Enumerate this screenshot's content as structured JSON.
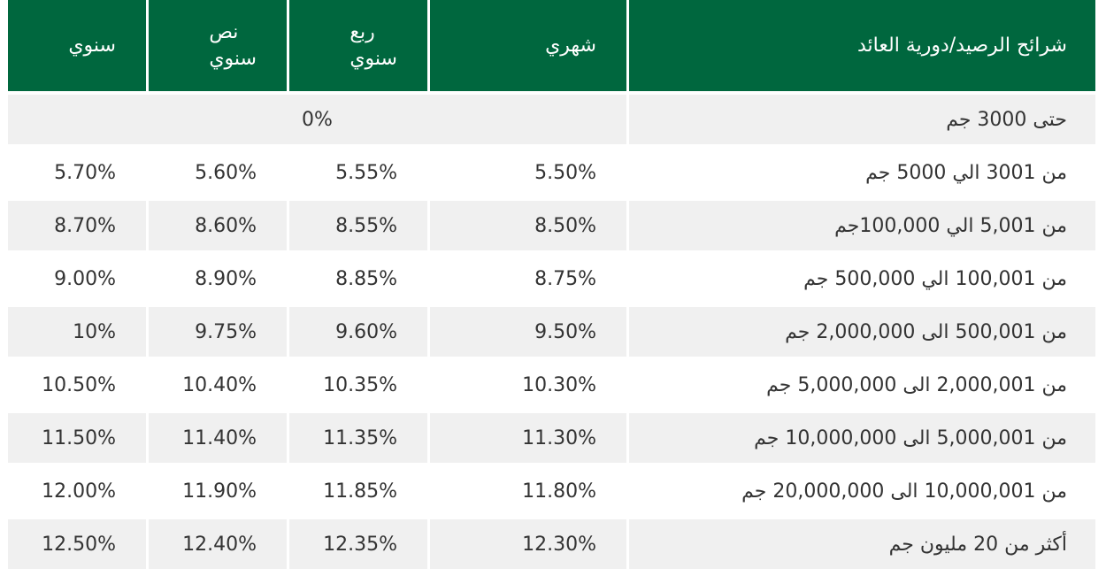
{
  "table": {
    "headers": {
      "tier": "شرائح الرصيد/دورية العائد",
      "monthly": "شهري",
      "quarterly_line1": "ربع",
      "quarterly_line2": "سنوي",
      "semiannual_line1": "نص",
      "semiannual_line2": "سنوي",
      "annual": "سنوي"
    },
    "first_row": {
      "label": "حتى 3000 جم",
      "value": "0%"
    },
    "rows": [
      {
        "label": "من 3001 الي 5000 جم",
        "monthly": "5.50%",
        "quarterly": "5.55%",
        "semiannual": "5.60%",
        "annual": "5.70%"
      },
      {
        "label": "من 5,001 الي 100,000جم",
        "monthly": "8.50%",
        "quarterly": "8.55%",
        "semiannual": "8.60%",
        "annual": "8.70%"
      },
      {
        "label": "من 100,001 الي 500,000 جم",
        "monthly": "8.75%",
        "quarterly": "8.85%",
        "semiannual": "8.90%",
        "annual": "9.00%"
      },
      {
        "label": "من 500,001 الى 2,000,000 جم",
        "monthly": "9.50%",
        "quarterly": "9.60%",
        "semiannual": "9.75%",
        "annual": "10%"
      },
      {
        "label": "من 2,000,001 الى 5,000,000 جم",
        "monthly": "10.30%",
        "quarterly": "10.35%",
        "semiannual": "10.40%",
        "annual": "10.50%"
      },
      {
        "label": "من 5,000,001 الى 10,000,000 جم",
        "monthly": "11.30%",
        "quarterly": "11.35%",
        "semiannual": "11.40%",
        "annual": "11.50%"
      },
      {
        "label": "من 10,000,001 الى 20,000,000 جم",
        "monthly": "11.80%",
        "quarterly": "11.85%",
        "semiannual": "11.90%",
        "annual": "12.00%"
      },
      {
        "label": "أكثر من 20 مليون جم",
        "monthly": "12.30%",
        "quarterly": "12.35%",
        "semiannual": "12.40%",
        "annual": "12.50%"
      }
    ]
  },
  "colors": {
    "header_bg": "#00673e",
    "header_text": "#ffffff",
    "row_grey": "#f0f0f0",
    "row_white": "#ffffff",
    "body_text": "#333333"
  }
}
